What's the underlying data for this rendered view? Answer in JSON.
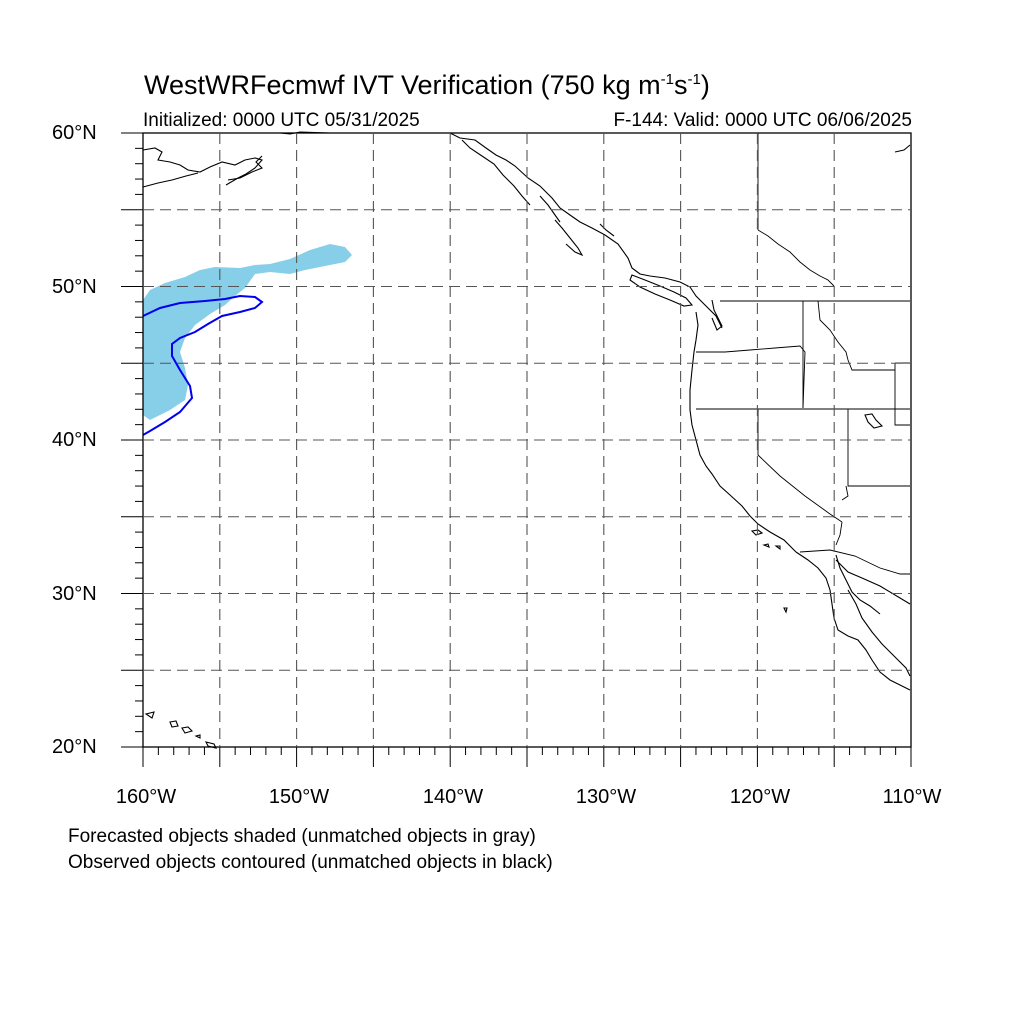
{
  "title": {
    "main": "WestWRFecmwf IVT Verification (750 kg m",
    "exp1": "-1",
    "mid": "s",
    "exp2": "-1",
    "end": ")"
  },
  "subtitle": {
    "initialized": "Initialized: 0000 UTC 05/31/2025",
    "valid": "F-144: Valid: 0000 UTC 06/06/2025"
  },
  "axes": {
    "lat_labels": [
      "60°N",
      "50°N",
      "40°N",
      "30°N",
      "20°N"
    ],
    "lon_labels": [
      "160°W",
      "150°W",
      "140°W",
      "130°W",
      "120°W",
      "110°W"
    ],
    "lat_range": [
      20,
      60
    ],
    "lon_range": [
      -160,
      -110
    ],
    "grid": "dashed every 5°"
  },
  "legend": {
    "line1": "Forecasted objects shaded (unmatched objects in gray)",
    "line2": "Observed objects contoured (unmatched objects in black)"
  },
  "colors": {
    "forecast_fill": "#87CEE8",
    "observed_contour": "#0000EE",
    "coastline": "#000000",
    "grid": "#555555"
  }
}
